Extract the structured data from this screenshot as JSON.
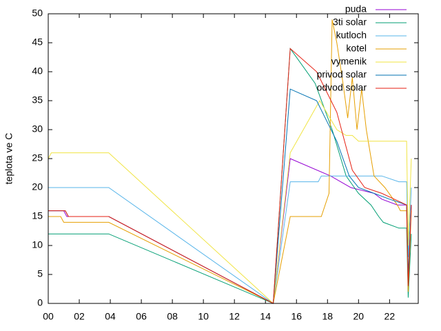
{
  "chart_data": {
    "type": "line",
    "ylabel": "teplota ve C",
    "xlim": [
      0,
      23.85
    ],
    "ylim": [
      0,
      50
    ],
    "xticks": [
      {
        "value": 0,
        "label": "00"
      },
      {
        "value": 2,
        "label": "02"
      },
      {
        "value": 4,
        "label": "04"
      },
      {
        "value": 6,
        "label": "06"
      },
      {
        "value": 8,
        "label": "08"
      },
      {
        "value": 10,
        "label": "10"
      },
      {
        "value": 12,
        "label": "12"
      },
      {
        "value": 14,
        "label": "14"
      },
      {
        "value": 16,
        "label": "16"
      },
      {
        "value": 18,
        "label": "18"
      },
      {
        "value": 20,
        "label": "20"
      },
      {
        "value": 22,
        "label": "22"
      }
    ],
    "yticks": [
      0,
      5,
      10,
      15,
      20,
      25,
      30,
      35,
      40,
      45,
      50
    ],
    "legend": "top-right",
    "series": [
      {
        "name": "puda",
        "color": "#9400d3",
        "x": [
          0,
          1,
          1.2,
          3.9,
          14.5,
          15.6,
          18.2,
          19.5,
          21,
          21.5,
          22.5,
          23.1,
          23.2,
          23.4
        ],
        "values": [
          16,
          16,
          15,
          15,
          0,
          25,
          22,
          20,
          19,
          18,
          17,
          17,
          2,
          17
        ]
      },
      {
        "name": "3ti solar",
        "color": "#009e73",
        "x": [
          0,
          3.9,
          14.5,
          15.6,
          17.2,
          18.3,
          19.2,
          20,
          20.8,
          21.3,
          21.6,
          22.6,
          23.1,
          23.2,
          23.4
        ],
        "values": [
          12,
          12,
          0,
          44,
          38,
          30,
          22,
          19,
          17,
          15,
          14,
          13,
          13,
          1,
          12
        ]
      },
      {
        "name": "kutloch",
        "color": "#56b4e9",
        "x": [
          0,
          3.9,
          14.5,
          15.6,
          17.4,
          17.6,
          21.5,
          22.6,
          23.1,
          23.2,
          23.4
        ],
        "values": [
          20,
          20,
          0,
          21,
          21,
          22,
          22,
          21,
          21,
          8,
          20
        ]
      },
      {
        "name": "kotel",
        "color": "#e69f00",
        "x": [
          0,
          0.8,
          1,
          3.9,
          14.5,
          15.6,
          17.6,
          18.1,
          18.3,
          18.6,
          19,
          19.3,
          19.6,
          19.9,
          20.2,
          20.5,
          21,
          21.7,
          22.5,
          22.7,
          23.1,
          23.2,
          23.4
        ],
        "values": [
          15,
          15,
          14,
          14,
          0,
          15,
          15,
          19,
          49,
          45,
          38,
          32,
          39,
          30,
          37,
          30,
          22,
          20,
          17,
          16,
          16,
          2,
          16
        ]
      },
      {
        "name": "vymenik",
        "color": "#f0e442",
        "x": [
          0,
          0.2,
          3.9,
          14.5,
          15.6,
          17.5,
          18.6,
          19.2,
          19.6,
          20,
          23.1,
          23.2,
          23.4
        ],
        "values": [
          25,
          26,
          26,
          0,
          26,
          35,
          30,
          29,
          29,
          28,
          28,
          10,
          25
        ]
      },
      {
        "name": "privod solar",
        "color": "#0072b2",
        "x": [
          0,
          1.1,
          1.3,
          3.9,
          14.5,
          15.6,
          17.3,
          18.6,
          19.4,
          20,
          21,
          22,
          23.1,
          23.2,
          23.4
        ],
        "values": [
          16,
          16,
          15,
          15,
          0,
          37,
          35,
          28,
          22,
          20,
          19,
          18,
          17,
          5,
          17
        ]
      },
      {
        "name": "odvod solar",
        "color": "#e51e10",
        "x": [
          0,
          1.1,
          1.3,
          3.9,
          14.5,
          15.6,
          17.3,
          18.6,
          19.6,
          20.4,
          21.5,
          22.3,
          23.1,
          23.2,
          23.4
        ],
        "values": [
          16,
          16,
          15,
          15,
          0,
          44,
          40,
          33,
          23,
          20,
          19,
          18,
          17,
          3,
          17
        ]
      }
    ]
  }
}
